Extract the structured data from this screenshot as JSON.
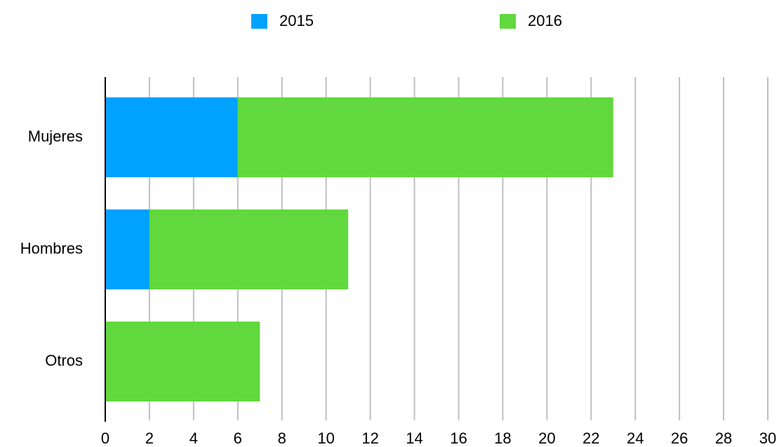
{
  "chart_data": {
    "type": "bar",
    "orientation": "horizontal",
    "stacked": true,
    "categories": [
      "Mujeres",
      "Hombres",
      "Otros"
    ],
    "series": [
      {
        "name": "2015",
        "color": "#00a2ff",
        "values": [
          6,
          2,
          0
        ]
      },
      {
        "name": "2016",
        "color": "#61d83d",
        "values": [
          17,
          9,
          7
        ]
      }
    ],
    "xlim": [
      0,
      30
    ],
    "xticks": [
      0,
      2,
      4,
      6,
      8,
      10,
      12,
      14,
      16,
      18,
      20,
      22,
      24,
      26,
      28,
      30
    ],
    "grid": true,
    "legend": "top"
  }
}
